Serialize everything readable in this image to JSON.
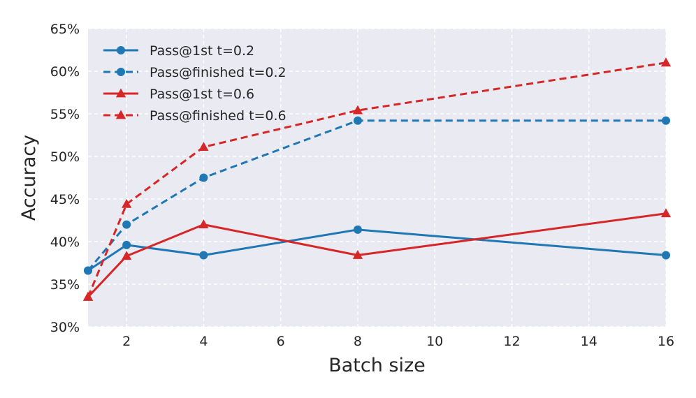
{
  "chart_data": {
    "type": "line",
    "title": "",
    "xlabel": "Batch size",
    "ylabel": "Accuracy",
    "xlim": [
      1,
      16
    ],
    "ylim": [
      30,
      65
    ],
    "xticks": [
      2,
      4,
      6,
      8,
      10,
      12,
      14,
      16
    ],
    "xtick_labels": [
      "2",
      "4",
      "6",
      "8",
      "10",
      "12",
      "14",
      "16"
    ],
    "yticks": [
      30,
      35,
      40,
      45,
      50,
      55,
      60,
      65
    ],
    "ytick_labels": [
      "30%",
      "35%",
      "40%",
      "45%",
      "50%",
      "55%",
      "60%",
      "65%"
    ],
    "grid": true,
    "legend_position": "top-left",
    "x": [
      1,
      2,
      4,
      8,
      16
    ],
    "series": [
      {
        "name": "Pass@1st t=0.2",
        "color": "#1f77b4",
        "style": "solid",
        "marker": "circle",
        "values": [
          36.6,
          39.6,
          38.4,
          41.4,
          38.4
        ]
      },
      {
        "name": "Pass@finished t=0.2",
        "color": "#1f77b4",
        "style": "dashed",
        "marker": "circle",
        "values": [
          36.6,
          42.0,
          47.5,
          54.2,
          54.2
        ]
      },
      {
        "name": "Pass@1st t=0.6",
        "color": "#d62728",
        "style": "solid",
        "marker": "triangle",
        "values": [
          33.5,
          38.3,
          42.0,
          38.4,
          43.3
        ]
      },
      {
        "name": "Pass@finished t=0.6",
        "color": "#d62728",
        "style": "dashed",
        "marker": "triangle",
        "values": [
          33.5,
          44.4,
          51.1,
          55.4,
          61.0
        ]
      }
    ]
  }
}
